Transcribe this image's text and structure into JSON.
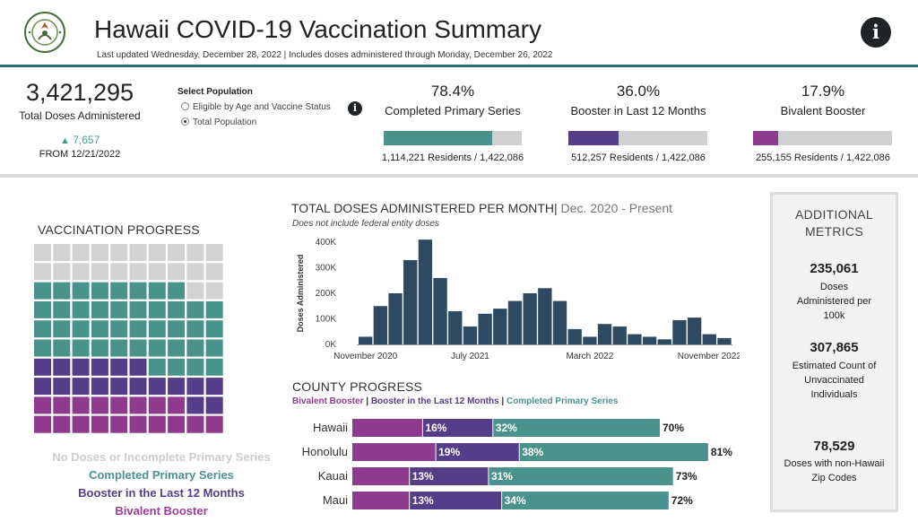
{
  "header": {
    "title": "Hawaii COVID-19 Vaccination Summary",
    "subtitle": "Last updated Wednesday, December 28, 2022 | Includes doses administered through Monday, December 26, 2022",
    "logo_icon": "hawaii-department-of-health-seal",
    "info_icon": "info-icon",
    "info_glyph": "i"
  },
  "kpis": {
    "total_doses": "3,421,295",
    "total_doses_label": "Total Doses Administered",
    "change_value": "7,657",
    "change_label": "FROM 12/21/2022",
    "change_color": "#4a9a8f"
  },
  "population_filter": {
    "label": "Select Population",
    "options": [
      "Eligible by Age and Vaccine Status",
      "Total Population"
    ],
    "selected": "Total Population"
  },
  "coverage": [
    {
      "pct_text": "78.4%",
      "label": "Completed Primary Series",
      "fraction": 0.784,
      "residents": "1,114,221 Residents",
      "population": "/ 1,422,086",
      "color": "#4a938c"
    },
    {
      "pct_text": "36.0%",
      "label": "Booster in Last 12 Months",
      "fraction": 0.36,
      "residents": "512,257 Residents",
      "population": "/ 1,422,086",
      "color": "#553d87"
    },
    {
      "pct_text": "17.9%",
      "label": "Bivalent Booster",
      "fraction": 0.179,
      "residents": "255,155 Residents",
      "population": "/ 1,422,086",
      "color": "#8e3b8f"
    }
  ],
  "progress": {
    "title": "VACCINATION PROGRESS",
    "legend": [
      {
        "text": "No Doses or Incomplete Primary Series",
        "color": "#cccccc"
      },
      {
        "text": "Completed Primary Series",
        "color": "#4a938c"
      },
      {
        "text": "Booster in the Last 12 Months",
        "color": "#553d87"
      },
      {
        "text": "Bivalent Booster",
        "color": "#9b3c99"
      }
    ]
  },
  "colors": {
    "grey": "#d2d2d2",
    "teal": "#4a938c",
    "purple": "#553d87",
    "magenta": "#8e3b8f",
    "navy": "#2e4a63"
  },
  "chart_data": [
    {
      "type": "bar",
      "title": "TOTAL DOSES ADMINISTERED PER MONTH",
      "subtitle": "Dec. 2020 - Present",
      "note": "Does not include federal entity doses",
      "ylabel": "Doses Administered",
      "xlabel": "",
      "ylim": [
        0,
        400000
      ],
      "yticks": [
        0,
        100000,
        200000,
        300000,
        400000
      ],
      "ytick_labels": [
        "0K",
        "100K",
        "200K",
        "300K",
        "400K"
      ],
      "x_tick_labels": [
        {
          "label": "November 2020",
          "index": 0
        },
        {
          "label": "July 2021",
          "index": 7
        },
        {
          "label": "March 2022",
          "index": 15
        },
        {
          "label": "November 2022",
          "index": 23
        }
      ],
      "categories": [
        "Dec 2020",
        "Jan 2021",
        "Feb 2021",
        "Mar 2021",
        "Apr 2021",
        "May 2021",
        "Jun 2021",
        "Jul 2021",
        "Aug 2021",
        "Sep 2021",
        "Oct 2021",
        "Nov 2021",
        "Dec 2021",
        "Jan 2022",
        "Feb 2022",
        "Mar 2022",
        "Apr 2022",
        "May 2022",
        "Jun 2022",
        "Jul 2022",
        "Aug 2022",
        "Sep 2022",
        "Oct 2022",
        "Nov 2022",
        "Dec 2022"
      ],
      "values": [
        30000,
        150000,
        200000,
        330000,
        410000,
        260000,
        130000,
        70000,
        120000,
        140000,
        170000,
        200000,
        220000,
        170000,
        60000,
        30000,
        80000,
        70000,
        40000,
        30000,
        20000,
        95000,
        105000,
        40000,
        25000
      ],
      "color": "#2e4a63"
    },
    {
      "type": "bar",
      "title": "COUNTY PROGRESS",
      "legend": [
        "Bivalent Booster",
        "Booster in the Last 12 Months",
        "Completed Primary Series"
      ],
      "legend_colors": [
        "#8e3b8f",
        "#553d87",
        "#4a938c"
      ],
      "categories": [
        "Hawaii",
        "Honolulu",
        "Kauai",
        "Maui"
      ],
      "series": [
        {
          "name": "Bivalent Booster",
          "values": [
            16,
            19,
            13,
            13
          ]
        },
        {
          "name": "Booster in the Last 12 Months",
          "values": [
            32,
            38,
            31,
            34
          ]
        },
        {
          "name": "Completed Primary Series",
          "values": [
            70,
            81,
            73,
            72
          ]
        }
      ],
      "segment_labels": [
        [
          "16%",
          "32%"
        ],
        [
          "19%",
          "38%"
        ],
        [
          "13%",
          "31%"
        ],
        [
          "13%",
          "34%"
        ]
      ],
      "total_labels": [
        "70%",
        "81%",
        "73%",
        "72%"
      ]
    }
  ],
  "metrics": {
    "title": "ADDITIONAL METRICS",
    "items": [
      {
        "value": "235,061",
        "label": "Doses Administered per 100k"
      },
      {
        "value": "307,865",
        "label": "Estimated Count of Unvaccinated Individuals"
      },
      {
        "value": "78,529",
        "label": "Doses with non-Hawaii Zip Codes"
      }
    ]
  }
}
